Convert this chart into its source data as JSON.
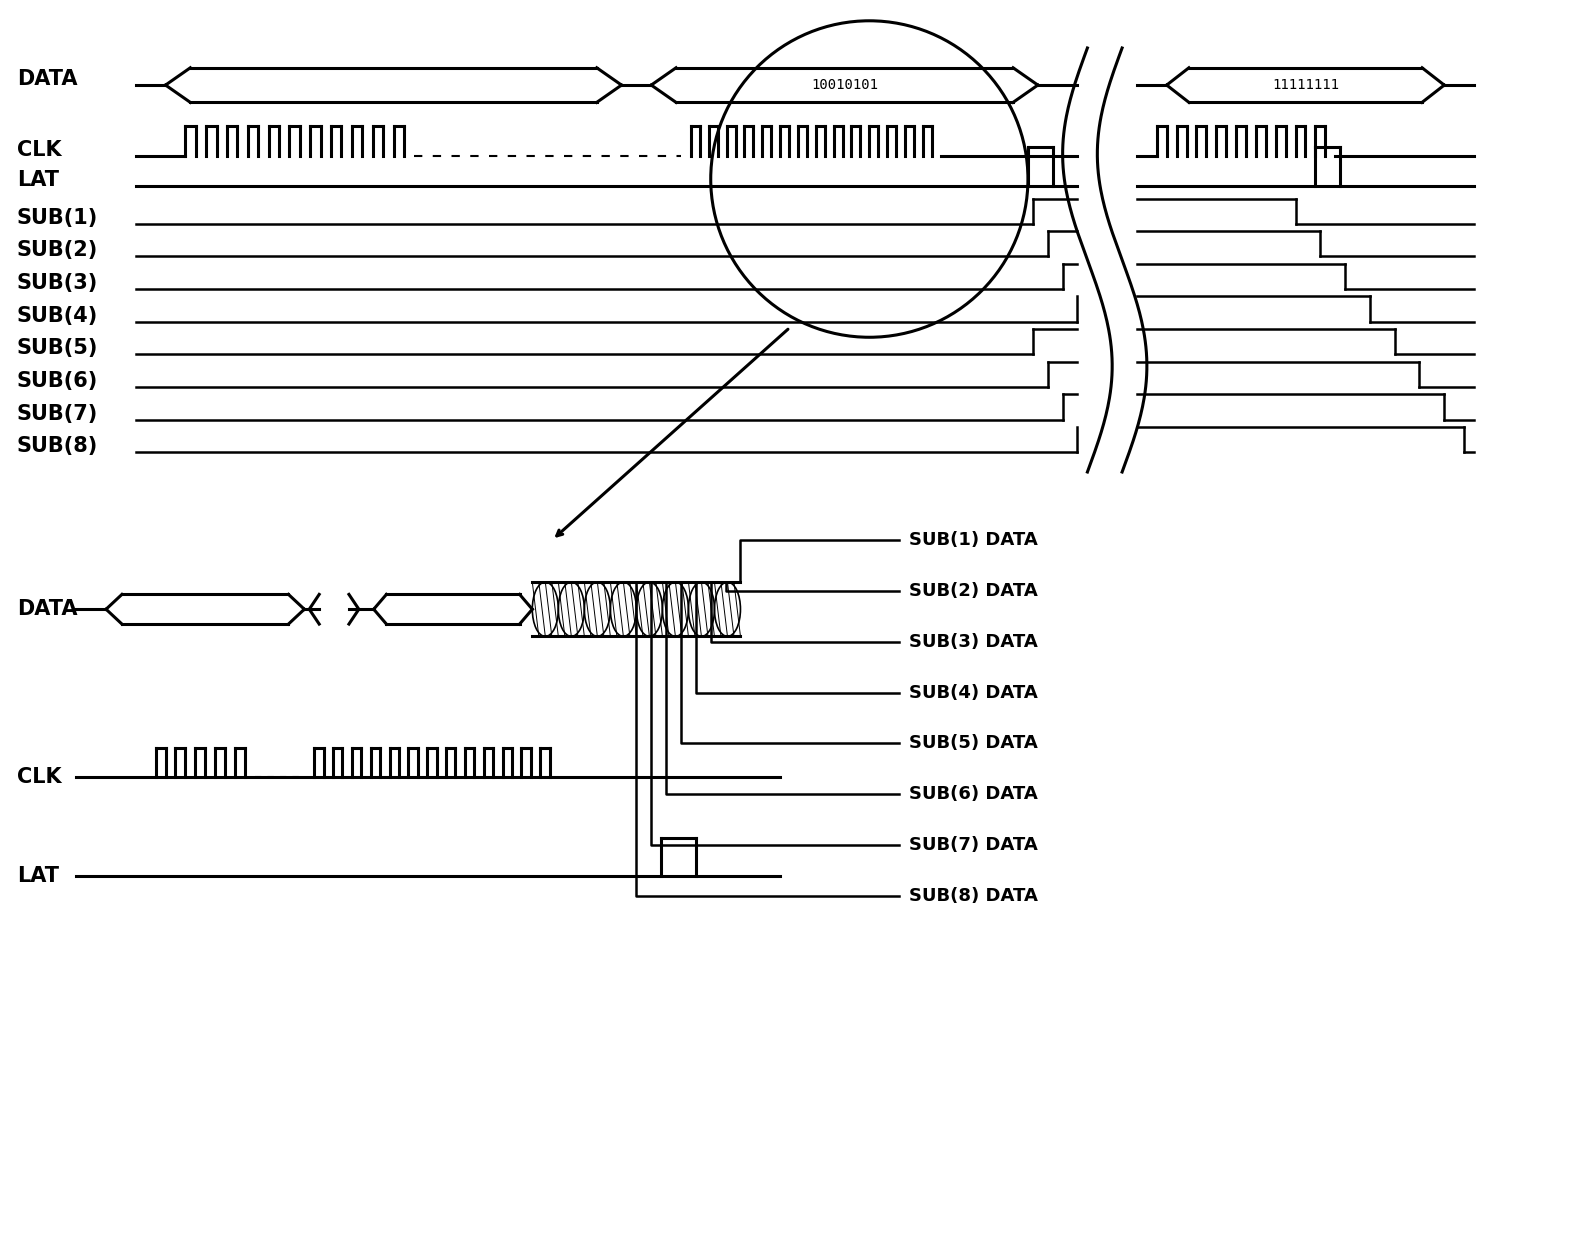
{
  "bg_color": "#ffffff",
  "signal_labels_top": [
    "DATA",
    "CLK",
    "LAT",
    "SUB(1)",
    "SUB(2)",
    "SUB(3)",
    "SUB(4)",
    "SUB(5)",
    "SUB(6)",
    "SUB(7)",
    "SUB(8)"
  ],
  "signal_labels_bottom": [
    "DATA",
    "CLK",
    "LAT"
  ],
  "sub_labels_right": [
    "SUB(1) DATA",
    "SUB(2) DATA",
    "SUB(3) DATA",
    "SUB(4) DATA",
    "SUB(5) DATA",
    "SUB(6) DATA",
    "SUB(7) DATA",
    "SUB(8) DATA"
  ],
  "data_text1": "10010101",
  "data_text2": "11111111",
  "label_font_size": 15,
  "sub_label_font_size": 13
}
